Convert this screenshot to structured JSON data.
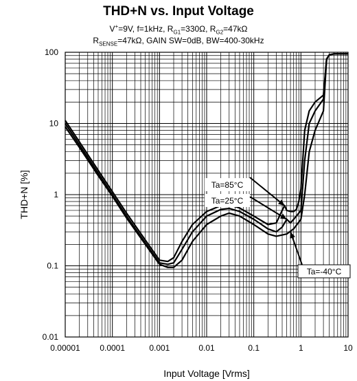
{
  "chart_data": {
    "type": "line",
    "title": "THD+N vs. Input Voltage",
    "subtitle_lines": [
      "V⁺=9V, f=1kHz, R_G1=330Ω, R_G2=47kΩ",
      "R_SENSE=47kΩ, GAIN SW=0dB, BW=400-30kHz"
    ],
    "xlabel": "Input Voltage [Vrms]",
    "ylabel": "THD+N [%]",
    "x_scale": "log",
    "y_scale": "log",
    "xlim": [
      1e-05,
      10
    ],
    "ylim": [
      0.01,
      100
    ],
    "x_tick_labels": [
      "0.00001",
      "0.0001",
      "0.001",
      "0.01",
      "0.1",
      "1",
      "10"
    ],
    "x_tick_values": [
      1e-05,
      0.0001,
      0.001,
      0.01,
      0.1,
      1,
      10
    ],
    "y_tick_labels": [
      "0.01",
      "0.1",
      "1",
      "10",
      "100"
    ],
    "y_tick_values": [
      0.01,
      0.1,
      1,
      10,
      100
    ],
    "grid": true,
    "series": [
      {
        "name": "Ta=85°C",
        "points": [
          [
            1e-05,
            11
          ],
          [
            2e-05,
            5.5
          ],
          [
            5e-05,
            2.2
          ],
          [
            0.0001,
            1.1
          ],
          [
            0.0002,
            0.55
          ],
          [
            0.0005,
            0.23
          ],
          [
            0.001,
            0.12
          ],
          [
            0.0015,
            0.115
          ],
          [
            0.002,
            0.13
          ],
          [
            0.003,
            0.22
          ],
          [
            0.005,
            0.38
          ],
          [
            0.01,
            0.58
          ],
          [
            0.02,
            0.7
          ],
          [
            0.03,
            0.72
          ],
          [
            0.05,
            0.65
          ],
          [
            0.1,
            0.5
          ],
          [
            0.2,
            0.38
          ],
          [
            0.3,
            0.4
          ],
          [
            0.4,
            0.6
          ],
          [
            0.45,
            0.7
          ],
          [
            0.5,
            0.6
          ],
          [
            0.6,
            0.58
          ],
          [
            0.7,
            0.58
          ],
          [
            0.8,
            0.62
          ],
          [
            0.9,
            0.8
          ],
          [
            1,
            1.2
          ],
          [
            1.2,
            8
          ],
          [
            1.5,
            15
          ],
          [
            2,
            20
          ],
          [
            3,
            25
          ],
          [
            3.5,
            80
          ],
          [
            4,
            92
          ],
          [
            5,
            95
          ],
          [
            10,
            95
          ]
        ]
      },
      {
        "name": "Ta=25°C",
        "points": [
          [
            1e-05,
            10
          ],
          [
            2e-05,
            5
          ],
          [
            5e-05,
            2
          ],
          [
            0.0001,
            1
          ],
          [
            0.0002,
            0.5
          ],
          [
            0.0005,
            0.21
          ],
          [
            0.001,
            0.11
          ],
          [
            0.0015,
            0.105
          ],
          [
            0.002,
            0.11
          ],
          [
            0.003,
            0.17
          ],
          [
            0.005,
            0.3
          ],
          [
            0.01,
            0.5
          ],
          [
            0.02,
            0.62
          ],
          [
            0.03,
            0.64
          ],
          [
            0.05,
            0.58
          ],
          [
            0.1,
            0.45
          ],
          [
            0.2,
            0.33
          ],
          [
            0.3,
            0.3
          ],
          [
            0.4,
            0.35
          ],
          [
            0.5,
            0.45
          ],
          [
            0.6,
            0.4
          ],
          [
            0.7,
            0.45
          ],
          [
            0.8,
            0.5
          ],
          [
            1,
            0.6
          ],
          [
            1.2,
            3
          ],
          [
            1.5,
            10
          ],
          [
            2,
            15
          ],
          [
            3,
            22
          ],
          [
            3.5,
            80
          ],
          [
            4,
            92
          ],
          [
            5,
            95
          ],
          [
            10,
            95
          ]
        ]
      },
      {
        "name": "Ta=-40°C",
        "points": [
          [
            1e-05,
            9
          ],
          [
            2e-05,
            4.6
          ],
          [
            5e-05,
            1.85
          ],
          [
            0.0001,
            0.95
          ],
          [
            0.0002,
            0.47
          ],
          [
            0.0005,
            0.2
          ],
          [
            0.001,
            0.105
          ],
          [
            0.0015,
            0.095
          ],
          [
            0.002,
            0.095
          ],
          [
            0.003,
            0.12
          ],
          [
            0.005,
            0.22
          ],
          [
            0.01,
            0.38
          ],
          [
            0.02,
            0.5
          ],
          [
            0.03,
            0.55
          ],
          [
            0.05,
            0.5
          ],
          [
            0.1,
            0.38
          ],
          [
            0.2,
            0.28
          ],
          [
            0.3,
            0.26
          ],
          [
            0.5,
            0.28
          ],
          [
            0.7,
            0.33
          ],
          [
            1,
            0.45
          ],
          [
            1.2,
            1
          ],
          [
            1.5,
            4
          ],
          [
            2,
            8
          ],
          [
            3,
            15
          ],
          [
            3.5,
            80
          ],
          [
            4,
            92
          ],
          [
            5,
            95
          ],
          [
            10,
            95
          ]
        ]
      }
    ],
    "annotations": [
      {
        "text": "Ta=85°C",
        "arrow_to": [
          0.45,
          0.7
        ]
      },
      {
        "text": "Ta=25°C",
        "arrow_to": [
          0.5,
          0.45
        ]
      },
      {
        "text": "Ta=-40°C",
        "arrow_to": [
          0.6,
          0.3
        ]
      }
    ]
  }
}
